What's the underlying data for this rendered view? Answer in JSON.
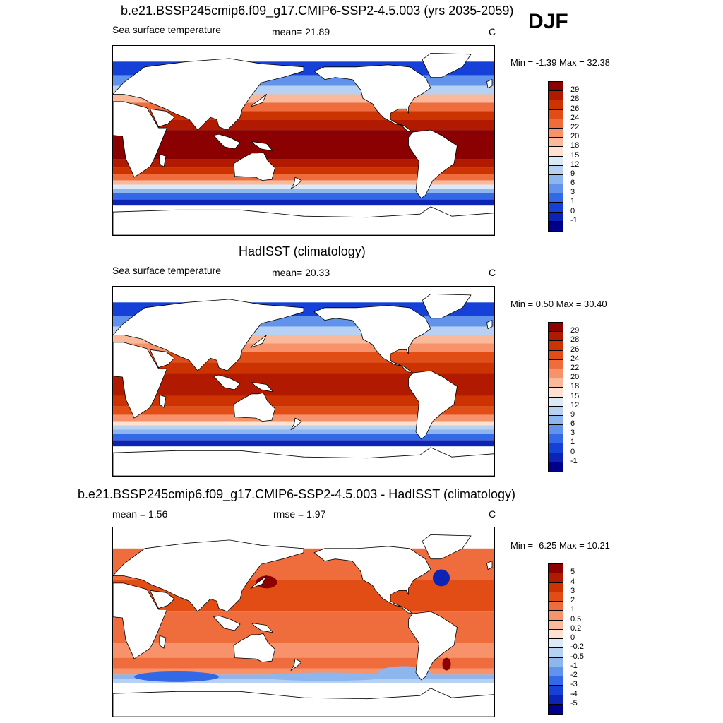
{
  "season": "DJF",
  "panels": [
    {
      "id": "model",
      "title": "b.e21.BSSP245cmip6.f09_g17.CMIP6-SSP2-4.5.003 (yrs 2035-2059)",
      "variable": "Sea surface temperature",
      "stat1": "mean=  21.89",
      "stat2": "",
      "units": "C",
      "minmax": "Min =  -1.39 Max =  32.38",
      "colorbar": {
        "labels": [
          "29",
          "28",
          "26",
          "24",
          "22",
          "20",
          "18",
          "15",
          "12",
          "9",
          "6",
          "3",
          "1",
          "0",
          "-1"
        ],
        "colors": [
          "#8b0000",
          "#b21a00",
          "#cc3300",
          "#e24d16",
          "#ef6d3d",
          "#f7926b",
          "#fbb99c",
          "#fde3cf",
          "#dce9f7",
          "#b7d1f2",
          "#8eb6ee",
          "#6293ec",
          "#3369e6",
          "#1641d8",
          "#0d23b5",
          "#00008b"
        ]
      },
      "map": {
        "style": "absolute",
        "bands": [
          {
            "lat": 90,
            "color": "#ffffff"
          },
          {
            "lat": 75,
            "color": "#1641d8"
          },
          {
            "lat": 62,
            "color": "#6293ec"
          },
          {
            "lat": 52,
            "color": "#b7d1f2"
          },
          {
            "lat": 44,
            "color": "#fbb99c"
          },
          {
            "lat": 36,
            "color": "#ef6d3d"
          },
          {
            "lat": 28,
            "color": "#cc3300"
          },
          {
            "lat": 20,
            "color": "#b21a00"
          },
          {
            "lat": 10,
            "color": "#8b0000"
          },
          {
            "lat": -18,
            "color": "#b21a00"
          },
          {
            "lat": -26,
            "color": "#cc3300"
          },
          {
            "lat": -32,
            "color": "#ef6d3d"
          },
          {
            "lat": -38,
            "color": "#fbb99c"
          },
          {
            "lat": -42,
            "color": "#dce9f7"
          },
          {
            "lat": -46,
            "color": "#8eb6ee"
          },
          {
            "lat": -50,
            "color": "#3369e6"
          },
          {
            "lat": -56,
            "color": "#0d23b5"
          },
          {
            "lat": -62,
            "color": "#ffffff"
          }
        ]
      }
    },
    {
      "id": "obs",
      "title": "HadISST (climatology)",
      "variable": "Sea surface temperature",
      "stat1": "mean=  20.33",
      "stat2": "",
      "units": "C",
      "minmax": "Min =   0.50 Max =  30.40",
      "colorbar": {
        "labels": [
          "29",
          "28",
          "26",
          "24",
          "22",
          "20",
          "18",
          "15",
          "12",
          "9",
          "6",
          "3",
          "1",
          "0",
          "-1"
        ],
        "colors": [
          "#8b0000",
          "#b21a00",
          "#cc3300",
          "#e24d16",
          "#ef6d3d",
          "#f7926b",
          "#fbb99c",
          "#fde3cf",
          "#dce9f7",
          "#b7d1f2",
          "#8eb6ee",
          "#6293ec",
          "#3369e6",
          "#1641d8",
          "#0d23b5",
          "#00008b"
        ]
      },
      "map": {
        "style": "absolute",
        "bands": [
          {
            "lat": 90,
            "color": "#ffffff"
          },
          {
            "lat": 75,
            "color": "#1641d8"
          },
          {
            "lat": 62,
            "color": "#6293ec"
          },
          {
            "lat": 52,
            "color": "#b7d1f2"
          },
          {
            "lat": 44,
            "color": "#fbb99c"
          },
          {
            "lat": 36,
            "color": "#f7926b"
          },
          {
            "lat": 28,
            "color": "#e24d16"
          },
          {
            "lat": 18,
            "color": "#cc3300"
          },
          {
            "lat": 8,
            "color": "#b21a00"
          },
          {
            "lat": -14,
            "color": "#cc3300"
          },
          {
            "lat": -24,
            "color": "#e24d16"
          },
          {
            "lat": -32,
            "color": "#f7926b"
          },
          {
            "lat": -38,
            "color": "#fde3cf"
          },
          {
            "lat": -42,
            "color": "#b7d1f2"
          },
          {
            "lat": -46,
            "color": "#8eb6ee"
          },
          {
            "lat": -50,
            "color": "#3369e6"
          },
          {
            "lat": -56,
            "color": "#0d23b5"
          },
          {
            "lat": -62,
            "color": "#ffffff"
          }
        ]
      }
    },
    {
      "id": "diff",
      "title": "b.e21.BSSP245cmip6.f09_g17.CMIP6-SSP2-4.5.003 - HadISST (climatology)",
      "variable": "",
      "stat1": "mean =   1.56",
      "stat2": "rmse =   1.97",
      "units": "C",
      "minmax": "Min =  -6.25 Max =  10.21",
      "colorbar": {
        "labels": [
          "5",
          "4",
          "3",
          "2",
          "1",
          "0.5",
          "0.2",
          "0",
          "-0.2",
          "-0.5",
          "-1",
          "-2",
          "-3",
          "-4",
          "-5"
        ],
        "colors": [
          "#8b0000",
          "#b21a00",
          "#cc3300",
          "#e24d16",
          "#ef6d3d",
          "#f7926b",
          "#fbb99c",
          "#fde3cf",
          "#dce9f7",
          "#b7d1f2",
          "#8eb6ee",
          "#6293ec",
          "#3369e6",
          "#1641d8",
          "#0d23b5",
          "#00008b"
        ]
      },
      "map": {
        "style": "diff",
        "bands": [
          {
            "lat": 90,
            "color": "#ffffff"
          },
          {
            "lat": 70,
            "color": "#ef6d3d"
          },
          {
            "lat": 40,
            "color": "#e24d16"
          },
          {
            "lat": 10,
            "color": "#ef6d3d"
          },
          {
            "lat": -20,
            "color": "#f7926b"
          },
          {
            "lat": -34,
            "color": "#ef6d3d"
          },
          {
            "lat": -44,
            "color": "#f7926b"
          },
          {
            "lat": -50,
            "color": "#8eb6ee"
          },
          {
            "lat": -54,
            "color": "#b7d1f2"
          },
          {
            "lat": -58,
            "color": "#ffffff"
          }
        ]
      }
    }
  ]
}
